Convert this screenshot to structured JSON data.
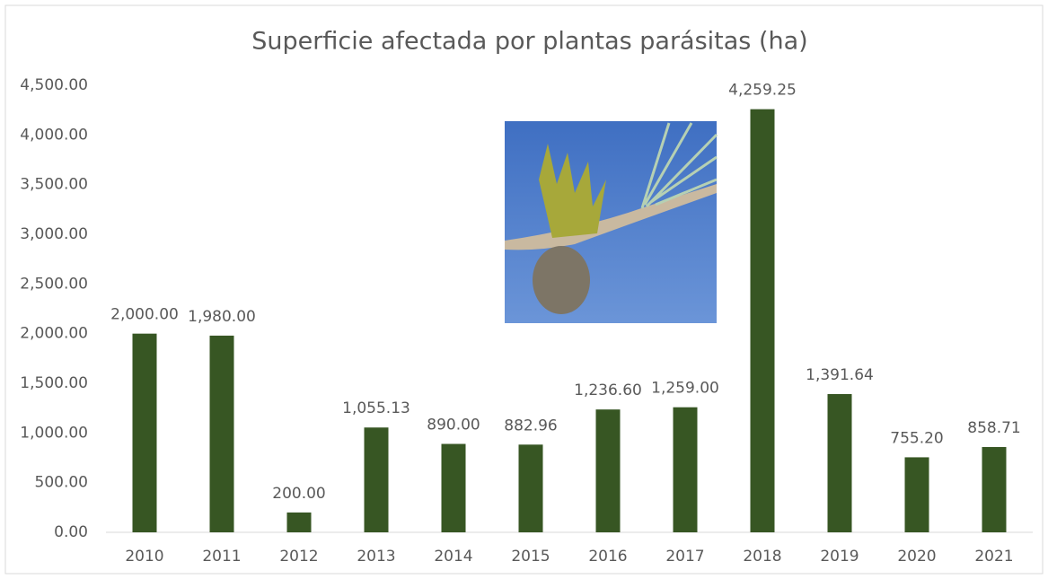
{
  "chart_data": {
    "type": "bar",
    "title": "Superficie afectada por plantas parásitas (ha)",
    "categories": [
      "2010",
      "2011",
      "2012",
      "2013",
      "2014",
      "2015",
      "2016",
      "2017",
      "2018",
      "2019",
      "2020",
      "2021"
    ],
    "values": [
      2000,
      1980,
      200,
      1055.13,
      890,
      882.96,
      1236.6,
      1259,
      4259.25,
      1391.64,
      755.2,
      858.71
    ],
    "value_labels": [
      "2,000.00",
      "1,980.00",
      "200.00",
      "1,055.13",
      "890.00",
      "882.96",
      "1,236.60",
      "1,259.00",
      "4,259.25",
      "1,391.64",
      "755.20",
      "858.71"
    ],
    "color": "#375623",
    "ylim": [
      0,
      4500
    ],
    "yticks": [
      {
        "value": 0,
        "label": "0.00"
      },
      {
        "value": 500,
        "label": "500.00"
      },
      {
        "value": 1000,
        "label": "1,000.00"
      },
      {
        "value": 1500,
        "label": "1,500.00"
      },
      {
        "value": 2000,
        "label": "2,000.00"
      },
      {
        "value": 2500,
        "label": "2,500.00"
      },
      {
        "value": 3000,
        "label": "3,000.00"
      },
      {
        "value": 3500,
        "label": "3,500.00"
      },
      {
        "value": 4000,
        "label": "4,000.00"
      },
      {
        "value": 4500,
        "label": "4,500.00"
      }
    ],
    "grid": false
  }
}
